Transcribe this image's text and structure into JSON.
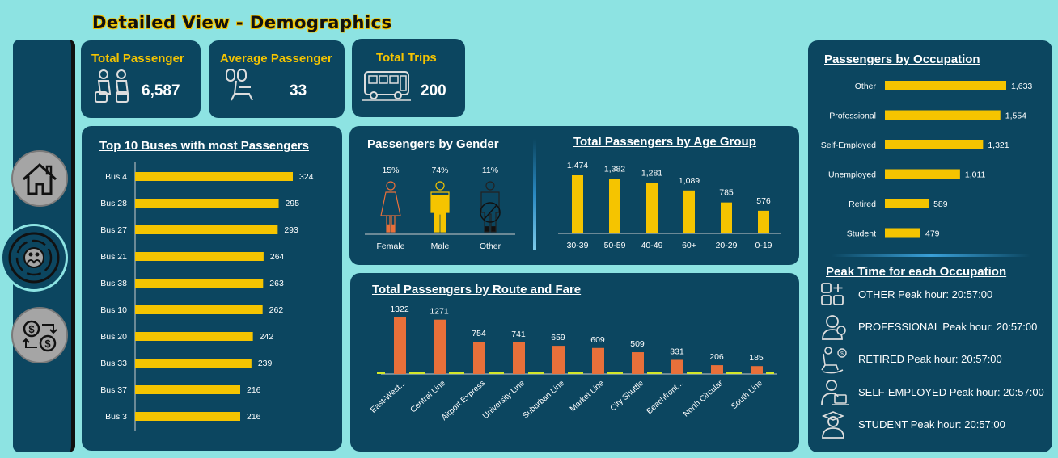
{
  "page_title": "Detailed View - Demographics",
  "colors": {
    "background": "#8de3e2",
    "panel": "#0c4660",
    "accent": "#f5c400",
    "orange": "#e8703a",
    "lime": "#d4e82a"
  },
  "nav": {
    "items": [
      {
        "name": "home",
        "icon": "home-icon"
      },
      {
        "name": "demographics",
        "icon": "people-circle-icon",
        "active": true
      },
      {
        "name": "finance",
        "icon": "money-exchange-icon"
      }
    ]
  },
  "kpis": [
    {
      "title": "Total Passenger",
      "value": "6,587",
      "icon": "passengers-icon"
    },
    {
      "title": "Average Passenger",
      "value": "33",
      "icon": "seat-icon"
    },
    {
      "title": "Total Trips",
      "value": "200",
      "icon": "bus-icon"
    }
  ],
  "top_buses": {
    "title": "Top 10 Buses with most Passengers",
    "categories": [
      "Bus 4",
      "Bus 28",
      "Bus 27",
      "Bus 21",
      "Bus 38",
      "Bus 10",
      "Bus 20",
      "Bus 33",
      "Bus 37",
      "Bus 3"
    ],
    "values": [
      324,
      295,
      293,
      264,
      263,
      262,
      242,
      239,
      216,
      216
    ],
    "labels": [
      "324",
      "295",
      "293",
      "264",
      "263",
      "262",
      "242",
      "239",
      "216",
      "216"
    ]
  },
  "gender": {
    "title": "Passengers by Gender",
    "items": [
      {
        "label": "Female",
        "pct": "15%",
        "fill": 0.15,
        "color": "#e8703a"
      },
      {
        "label": "Male",
        "pct": "74%",
        "fill": 0.74,
        "color": "#f5c400"
      },
      {
        "label": "Other",
        "pct": "11%",
        "fill": 0.11,
        "color": "#111111"
      }
    ]
  },
  "age_group": {
    "title": "Total Passengers by Age Group",
    "categories": [
      "30-39",
      "50-59",
      "40-49",
      "60+",
      "20-29",
      "0-19"
    ],
    "values": [
      1474,
      1382,
      1281,
      1089,
      785,
      576
    ],
    "labels": [
      "1,474",
      "1,382",
      "1,281",
      "1,089",
      "785",
      "576"
    ]
  },
  "route_fare": {
    "title": "Total Passengers by Route and Fare",
    "categories": [
      "East-West...",
      "Central Line",
      "Airport Express",
      "University Line",
      "Suburban Line",
      "Market Line",
      "City Shuttle",
      "Beachfront...",
      "North Circular",
      "South Line"
    ],
    "values": [
      1322,
      1271,
      754,
      741,
      659,
      609,
      509,
      331,
      206,
      185
    ],
    "labels": [
      "1322",
      "1271",
      "754",
      "741",
      "659",
      "609",
      "509",
      "331",
      "206",
      "185"
    ]
  },
  "occupation": {
    "title": "Passengers by Occupation",
    "categories": [
      "Other",
      "Professional",
      "Self-Employed",
      "Unemployed",
      "Retired",
      "Student"
    ],
    "values": [
      1633,
      1554,
      1321,
      1011,
      589,
      479
    ],
    "labels": [
      "1,633",
      "1,554",
      "1,321",
      "1,011",
      "589",
      "479"
    ]
  },
  "peak_time": {
    "title": "Peak Time for each Occupation",
    "rows": [
      {
        "text": "OTHER Peak hour: 20:57:00",
        "icon": "grid-plus-icon"
      },
      {
        "text": "PROFESSIONAL Peak hour: 20:57:00",
        "icon": "professional-icon"
      },
      {
        "text": "RETIRED Peak hour: 20:57:00",
        "icon": "rocking-chair-icon"
      },
      {
        "text": "SELF-EMPLOYED Peak hour: 20:57:00",
        "icon": "laptop-worker-icon"
      },
      {
        "text": "STUDENT Peak hour: 20:57:00",
        "icon": "student-icon"
      }
    ]
  }
}
